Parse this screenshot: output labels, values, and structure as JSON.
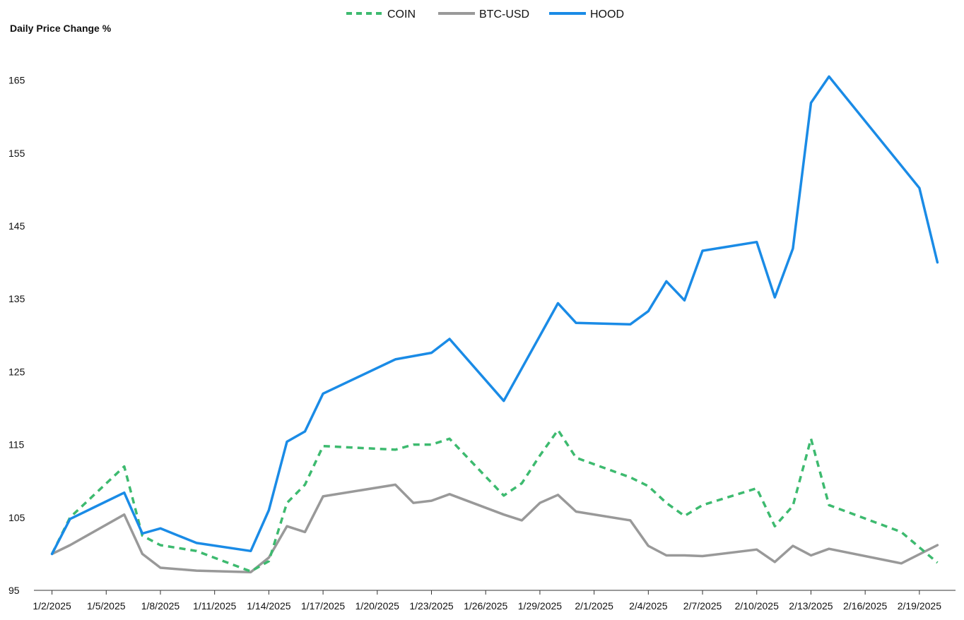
{
  "chart_data": {
    "type": "line",
    "ylabel": "Daily Price Change %",
    "ylim": [
      95,
      170
    ],
    "yticks": [
      95,
      105,
      115,
      125,
      135,
      145,
      155,
      165
    ],
    "xlim": [
      "2025-01-01",
      "2025-02-21"
    ],
    "xticks": [
      "2025-01-02",
      "2025-01-05",
      "2025-01-08",
      "2025-01-11",
      "2025-01-14",
      "2025-01-17",
      "2025-01-20",
      "2025-01-23",
      "2025-01-26",
      "2025-01-29",
      "2025-02-01",
      "2025-02-04",
      "2025-02-07",
      "2025-02-10",
      "2025-02-13",
      "2025-02-16",
      "2025-02-19"
    ],
    "xtick_labels": [
      "1/2/2025",
      "1/5/2025",
      "1/8/2025",
      "1/11/2025",
      "1/14/2025",
      "1/17/2025",
      "1/20/2025",
      "1/23/2025",
      "1/26/2025",
      "1/29/2025",
      "2/1/2025",
      "2/4/2025",
      "2/7/2025",
      "2/10/2025",
      "2/13/2025",
      "2/16/2025",
      "2/19/2025"
    ],
    "legend_position": "top-center",
    "grid": false,
    "series": [
      {
        "name": "COIN",
        "color": "#3dba6f",
        "style": "dashed",
        "x": [
          "2025-01-02",
          "2025-01-03",
          "2025-01-06",
          "2025-01-07",
          "2025-01-08",
          "2025-01-10",
          "2025-01-13",
          "2025-01-14",
          "2025-01-15",
          "2025-01-16",
          "2025-01-17",
          "2025-01-21",
          "2025-01-22",
          "2025-01-23",
          "2025-01-24",
          "2025-01-27",
          "2025-01-28",
          "2025-01-29",
          "2025-01-30",
          "2025-01-31",
          "2025-02-03",
          "2025-02-04",
          "2025-02-05",
          "2025-02-06",
          "2025-02-07",
          "2025-02-10",
          "2025-02-11",
          "2025-02-12",
          "2025-02-13",
          "2025-02-14",
          "2025-02-18",
          "2025-02-20"
        ],
        "values": [
          100.0,
          105.0,
          112.0,
          102.5,
          101.2,
          100.4,
          97.6,
          99.0,
          107.0,
          109.5,
          114.8,
          114.3,
          115.0,
          115.0,
          115.8,
          108.0,
          109.7,
          113.5,
          117.0,
          113.2,
          110.5,
          109.3,
          107.0,
          105.2,
          106.7,
          109.0,
          103.8,
          106.6,
          115.8,
          106.7,
          103.0,
          98.8
        ]
      },
      {
        "name": "BTC-USD",
        "color": "#999999",
        "style": "solid",
        "x": [
          "2025-01-02",
          "2025-01-03",
          "2025-01-06",
          "2025-01-07",
          "2025-01-08",
          "2025-01-10",
          "2025-01-13",
          "2025-01-14",
          "2025-01-15",
          "2025-01-16",
          "2025-01-17",
          "2025-01-21",
          "2025-01-22",
          "2025-01-23",
          "2025-01-24",
          "2025-01-27",
          "2025-01-28",
          "2025-01-29",
          "2025-01-30",
          "2025-01-31",
          "2025-02-03",
          "2025-02-04",
          "2025-02-05",
          "2025-02-06",
          "2025-02-07",
          "2025-02-10",
          "2025-02-11",
          "2025-02-12",
          "2025-02-13",
          "2025-02-14",
          "2025-02-18",
          "2025-02-20"
        ],
        "values": [
          100.0,
          101.2,
          105.4,
          100.0,
          98.1,
          97.7,
          97.5,
          99.5,
          103.8,
          103.0,
          107.9,
          109.5,
          107.0,
          107.3,
          108.2,
          105.4,
          104.6,
          107.0,
          108.1,
          105.8,
          104.6,
          101.1,
          99.8,
          99.8,
          99.7,
          100.6,
          98.9,
          101.1,
          99.8,
          100.7,
          98.7,
          101.2
        ]
      },
      {
        "name": "HOOD",
        "color": "#1a8be6",
        "style": "solid",
        "x": [
          "2025-01-02",
          "2025-01-03",
          "2025-01-06",
          "2025-01-07",
          "2025-01-08",
          "2025-01-10",
          "2025-01-13",
          "2025-01-14",
          "2025-01-15",
          "2025-01-16",
          "2025-01-17",
          "2025-01-21",
          "2025-01-23",
          "2025-01-24",
          "2025-01-27",
          "2025-01-30",
          "2025-01-31",
          "2025-02-03",
          "2025-02-04",
          "2025-02-05",
          "2025-02-06",
          "2025-02-07",
          "2025-02-10",
          "2025-02-11",
          "2025-02-12",
          "2025-02-13",
          "2025-02-14",
          "2025-02-19",
          "2025-02-20"
        ],
        "values": [
          100.0,
          104.8,
          108.4,
          102.8,
          103.5,
          101.5,
          100.4,
          106.0,
          115.4,
          116.8,
          122.0,
          126.7,
          127.6,
          129.5,
          121.0,
          134.4,
          131.7,
          131.5,
          133.3,
          137.4,
          134.8,
          141.6,
          142.8,
          135.2,
          141.9,
          161.9,
          165.5,
          150.2,
          140.0
        ]
      }
    ]
  }
}
